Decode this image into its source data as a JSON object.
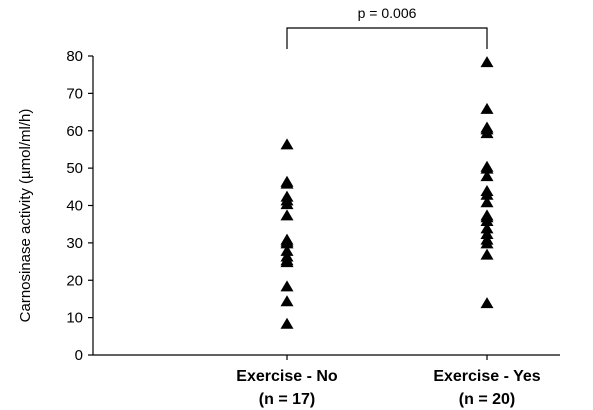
{
  "chart_data": {
    "type": "scatter",
    "ylabel": "Carnosinase activity (µmol/ml/h)",
    "ylim": [
      0,
      80
    ],
    "yticks": [
      0,
      10,
      20,
      30,
      40,
      50,
      60,
      70,
      80
    ],
    "categories": [
      {
        "label": "Exercise - No",
        "sublabel": "(n = 17)"
      },
      {
        "label": "Exercise - Yes",
        "sublabel": "(n = 20)"
      }
    ],
    "series": [
      {
        "values": [
          56.5,
          46.5,
          46,
          42.5,
          41.5,
          40.5,
          37.5,
          31,
          30.5,
          30,
          28,
          26.5,
          25.5,
          25,
          18.5,
          14.5,
          8.5
        ]
      },
      {
        "values": [
          78.5,
          66,
          61,
          60.5,
          59.5,
          50.5,
          50,
          48,
          44,
          43,
          41,
          37.5,
          37,
          36,
          34,
          32.5,
          31,
          30,
          27,
          14
        ]
      }
    ],
    "annotation": {
      "text": "p = 0.006"
    },
    "marker_color": "#000000",
    "grid": false,
    "legend": "none"
  }
}
